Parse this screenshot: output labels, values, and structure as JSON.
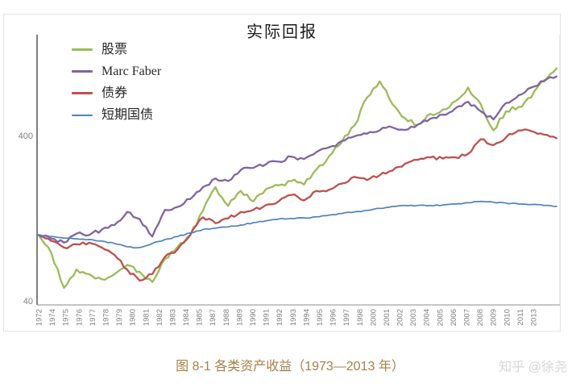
{
  "chart_data": {
    "type": "line",
    "title": "实际回报",
    "legend_position": "top-left",
    "y_scale": "log",
    "y_ticks": [
      40,
      400
    ],
    "y_range": [
      40,
      1550
    ],
    "baseline_index_value": 100,
    "x_range": [
      1973,
      2014
    ],
    "x_tick_labels": [
      "1972",
      "1974",
      "1975",
      "1976",
      "1977",
      "1978",
      "1979",
      "1980",
      "1981",
      "1982",
      "1983",
      "1984",
      "1985",
      "1987",
      "1988",
      "1989",
      "1990",
      "1991",
      "1992",
      "1993",
      "1994",
      "1995",
      "1996",
      "1997",
      "1998",
      "2000",
      "2001",
      "2002",
      "2003",
      "2004",
      "2005",
      "2006",
      "2007",
      "2008",
      "2009",
      "2010",
      "2011",
      "2013"
    ],
    "years": [
      1973,
      1974,
      1975,
      1976,
      1977,
      1978,
      1979,
      1980,
      1981,
      1982,
      1983,
      1984,
      1985,
      1986,
      1987,
      1988,
      1989,
      1990,
      1991,
      1992,
      1993,
      1994,
      1995,
      1996,
      1997,
      1998,
      1999,
      2000,
      2001,
      2002,
      2003,
      2004,
      2005,
      2006,
      2007,
      2008,
      2009,
      2010,
      2011,
      2012,
      2013,
      2014
    ],
    "series": [
      {
        "id": "stocks",
        "name": "股票",
        "color": "#9BBB59",
        "values": [
          100,
          78,
          48,
          62,
          58,
          54,
          58,
          66,
          60,
          52,
          72,
          85,
          100,
          140,
          195,
          150,
          185,
          160,
          190,
          200,
          212,
          202,
          250,
          300,
          365,
          460,
          680,
          850,
          620,
          510,
          465,
          540,
          575,
          645,
          780,
          620,
          430,
          560,
          595,
          680,
          860,
          1020
        ]
      },
      {
        "id": "marc-faber",
        "name": "Marc Faber",
        "color": "#8064A2",
        "values": [
          100,
          95,
          90,
          102,
          100,
          108,
          115,
          138,
          125,
          98,
          142,
          148,
          165,
          195,
          220,
          212,
          248,
          255,
          268,
          278,
          298,
          288,
          318,
          340,
          370,
          395,
          410,
          430,
          448,
          432,
          465,
          505,
          535,
          585,
          640,
          560,
          500,
          630,
          700,
          780,
          850,
          910
        ]
      },
      {
        "id": "bonds",
        "name": "债券",
        "color": "#C0504D",
        "values": [
          100,
          92,
          84,
          88,
          90,
          84,
          76,
          62,
          53,
          58,
          74,
          82,
          100,
          128,
          118,
          126,
          138,
          142,
          152,
          160,
          175,
          162,
          185,
          188,
          205,
          225,
          215,
          230,
          245,
          270,
          285,
          295,
          290,
          295,
          310,
          380,
          350,
          390,
          430,
          425,
          405,
          385
        ]
      },
      {
        "id": "t-bills",
        "name": "短期国债",
        "color": "#4F81BD",
        "values": [
          100,
          98,
          96,
          95,
          94,
          92,
          89,
          85,
          84,
          89,
          94,
          98,
          103,
          108,
          110,
          112,
          115,
          119,
          122,
          125,
          126,
          127,
          129,
          132,
          135,
          138,
          141,
          145,
          149,
          151,
          151,
          151,
          152,
          154,
          157,
          160,
          158,
          156,
          154,
          153,
          151,
          149
        ]
      }
    ]
  },
  "caption": {
    "text": "图 8-1 各类资产收益（1973—2013 年）",
    "color": "#A87F46"
  },
  "watermark": {
    "text": "知乎 @徐尧",
    "color": "#D6D6D6"
  },
  "colors": {
    "axis_line": "#4A4A4A",
    "baseline": "#8C8C8C",
    "tick_label": "#808080",
    "card_border": "#E2E2E2",
    "plot_right_border": "#D9D9D9",
    "title_text": "#1A1A1A"
  }
}
